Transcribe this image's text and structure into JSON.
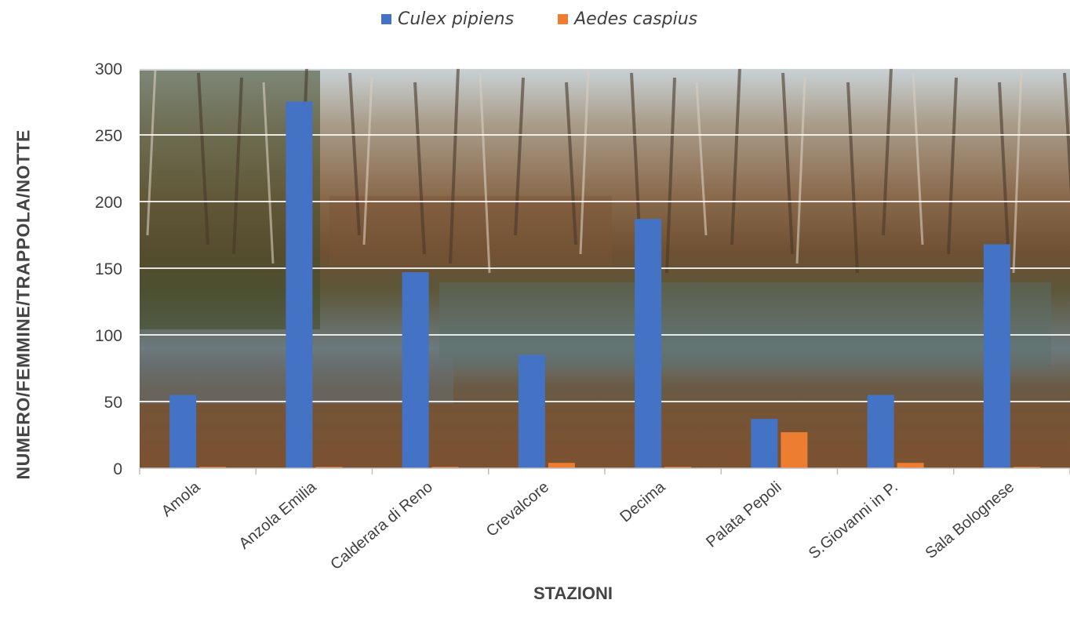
{
  "chart_data": {
    "type": "bar",
    "categories": [
      "Amola",
      "Anzola Emilia",
      "Calderara di Reno",
      "Crevalcore",
      "Decima",
      "Palata Pepoli",
      "S.Giovanni in P.",
      "Sala Bolognese"
    ],
    "series": [
      {
        "name": "Culex pipiens",
        "values": [
          55,
          275,
          147,
          85,
          187,
          37,
          55,
          168
        ],
        "color": "#4472C4"
      },
      {
        "name": "Aedes caspius",
        "values": [
          1,
          1,
          1,
          4,
          1,
          27,
          4,
          1
        ],
        "color": "#ED7D31"
      }
    ],
    "ylim": [
      0,
      300
    ],
    "yticks": [
      0,
      50,
      100,
      150,
      200,
      250,
      300
    ],
    "xlabel": "STAZIONI",
    "ylabel": "NUMERO/FEMMINE/TRAPPOLA/NOTTE",
    "grid": true,
    "legend_position": "top",
    "background": "photo of wetland forest"
  }
}
